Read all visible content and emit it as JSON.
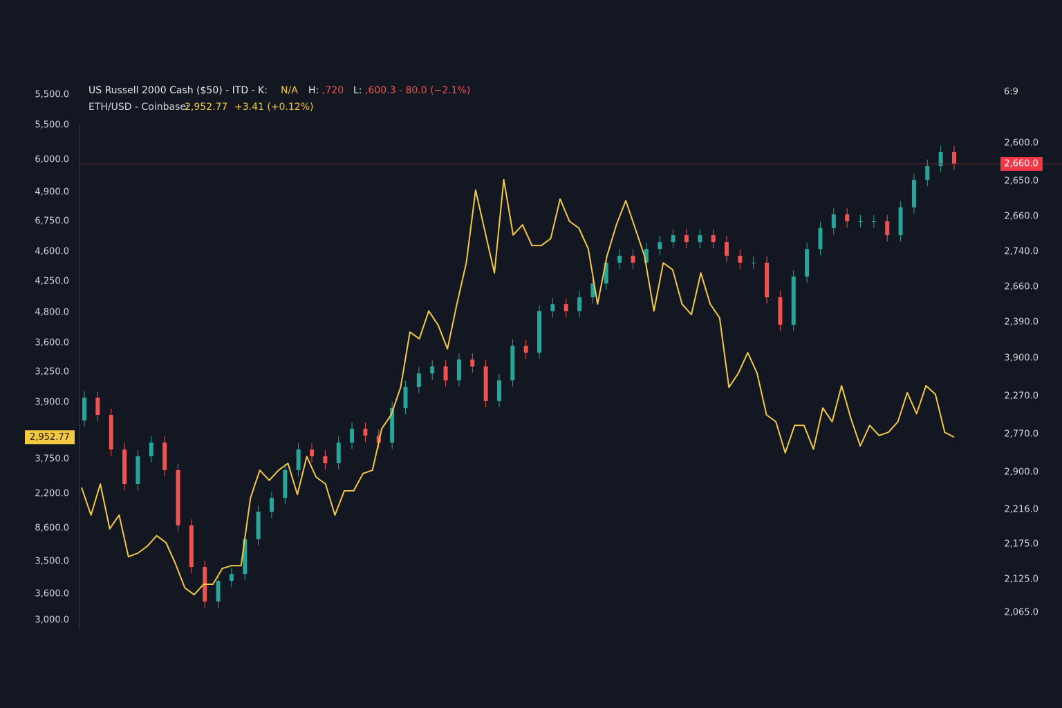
{
  "header": {
    "symbol": "US Russell 2000 Cash ($50) - ITD - K:",
    "k_value": "N/A",
    "h_label": "H:",
    "h_value": ",720",
    "l_label": "L:",
    "l_value": ",600.3 - 80.0 (−2.1%)",
    "compare_symbol": "ETH/USD - Coinbase:",
    "compare_price": "2,952.77",
    "compare_change": "+3.41 (+0.12%)",
    "corner": "6:9"
  },
  "chart_data": {
    "type": "candlestick",
    "ylim": [
      3000,
      5500
    ],
    "y2lim": [
      2500,
      3800
    ],
    "left_axis_labels": [
      "5,500.0",
      "5,500.0",
      "6,000.0",
      "4,900.0",
      "6,750.0",
      "4,600.0",
      "4,250.0",
      "4,800.0",
      "3,600.0",
      "3,250.0",
      "3,900.0",
      "3,750.0",
      "2,200.0",
      "8,600.0",
      "3,500.0",
      "3,600.0",
      "3,000.0"
    ],
    "right_axis_labels": [
      "2,600.0",
      "2,650.0",
      "2,660.0",
      "2,740.0",
      "2,660.0",
      "2,390.0",
      "3,900.0",
      "2,270.0",
      "2,770.0",
      "2,900.0",
      "2,216.0",
      "2,175.0",
      "2,125.0",
      "2,065.0"
    ],
    "price_tag": "2,660.0",
    "series": [
      {
        "up_color": "#26a69a",
        "down_color": "#ef5350",
        "open": [
          3950,
          4059,
          3977,
          3812,
          3648,
          3780,
          3845,
          3714,
          3451,
          3253,
          3089,
          3187,
          3220,
          3385,
          3516,
          3582,
          3714,
          3812,
          3780,
          3747,
          3845,
          3911,
          3878,
          3845,
          4010,
          4109,
          4174,
          4207,
          4141,
          4240,
          4207,
          4043,
          4141,
          4306,
          4273,
          4470,
          4503,
          4470,
          4536,
          4602,
          4701,
          4734,
          4701,
          4766,
          4799,
          4832,
          4799,
          4832,
          4799,
          4734,
          4701,
          4701,
          4536,
          4405,
          4635,
          4766,
          4865,
          4931,
          4898,
          4898,
          4898,
          4832,
          4964,
          5095,
          5161,
          5227
        ],
        "high": [
          4089,
          4089,
          4007,
          3842,
          3810,
          3875,
          3875,
          3744,
          3481,
          3283,
          3217,
          3250,
          3415,
          3546,
          3612,
          3744,
          3842,
          3842,
          3810,
          3875,
          3941,
          3941,
          3908,
          4040,
          4139,
          4204,
          4237,
          4237,
          4270,
          4270,
          4237,
          4171,
          4336,
          4336,
          4500,
          4533,
          4533,
          4566,
          4632,
          4731,
          4764,
          4764,
          4796,
          4829,
          4862,
          4862,
          4862,
          4862,
          4829,
          4764,
          4731,
          4731,
          4566,
          4665,
          4796,
          4895,
          4961,
          4961,
          4928,
          4928,
          4928,
          4994,
          5125,
          5191,
          5257,
          5257
        ],
        "low": [
          3920,
          3947,
          3782,
          3618,
          3618,
          3750,
          3684,
          3421,
          3223,
          3059,
          3059,
          3157,
          3190,
          3355,
          3486,
          3552,
          3684,
          3750,
          3717,
          3717,
          3815,
          3848,
          3815,
          3815,
          3980,
          4079,
          4144,
          4111,
          4111,
          4177,
          4013,
          4013,
          4111,
          4243,
          4243,
          4440,
          4440,
          4440,
          4506,
          4572,
          4671,
          4671,
          4671,
          4736,
          4769,
          4769,
          4769,
          4769,
          4704,
          4671,
          4671,
          4506,
          4375,
          4375,
          4605,
          4736,
          4835,
          4868,
          4868,
          4868,
          4802,
          4802,
          4934,
          5065,
          5131,
          5141
        ],
        "close": [
          4059,
          3977,
          3812,
          3648,
          3780,
          3845,
          3714,
          3451,
          3253,
          3089,
          3187,
          3220,
          3385,
          3516,
          3582,
          3714,
          3812,
          3780,
          3747,
          3845,
          3911,
          3878,
          3845,
          4010,
          4109,
          4174,
          4207,
          4141,
          4240,
          4207,
          4043,
          4141,
          4306,
          4273,
          4470,
          4503,
          4470,
          4536,
          4602,
          4701,
          4734,
          4701,
          4766,
          4799,
          4832,
          4799,
          4832,
          4799,
          4734,
          4701,
          4701,
          4536,
          4405,
          4635,
          4766,
          4865,
          4931,
          4898,
          4898,
          4898,
          4832,
          4964,
          5095,
          5161,
          5227,
          5171
        ]
      },
      {
        "type": "line",
        "axis": "y2",
        "color": "#f5c842",
        "last_label": "2,952.77",
        "values": [
          2828,
          2760,
          2837,
          2726,
          2760,
          2657,
          2666,
          2683,
          2709,
          2692,
          2640,
          2580,
          2563,
          2589,
          2589,
          2628,
          2635,
          2635,
          2803,
          2871,
          2846,
          2871,
          2888,
          2811,
          2905,
          2854,
          2837,
          2760,
          2820,
          2820,
          2863,
          2871,
          2974,
          3008,
          3076,
          3213,
          3196,
          3265,
          3230,
          3171,
          3282,
          3384,
          3564,
          3461,
          3359,
          3590,
          3453,
          3478,
          3427,
          3427,
          3444,
          3542,
          3487,
          3470,
          3419,
          3282,
          3401,
          3478,
          3538,
          3470,
          3401,
          3265,
          3384,
          3367,
          3282,
          3256,
          3359,
          3282,
          3248,
          3076,
          3111,
          3162,
          3111,
          3008,
          2991,
          2914,
          2982,
          2982,
          2923,
          3025,
          2991,
          3080,
          2999,
          2931,
          2982,
          2957,
          2965,
          2991,
          3063,
          3011,
          3080,
          3059,
          2965,
          2952.77
        ]
      }
    ]
  }
}
